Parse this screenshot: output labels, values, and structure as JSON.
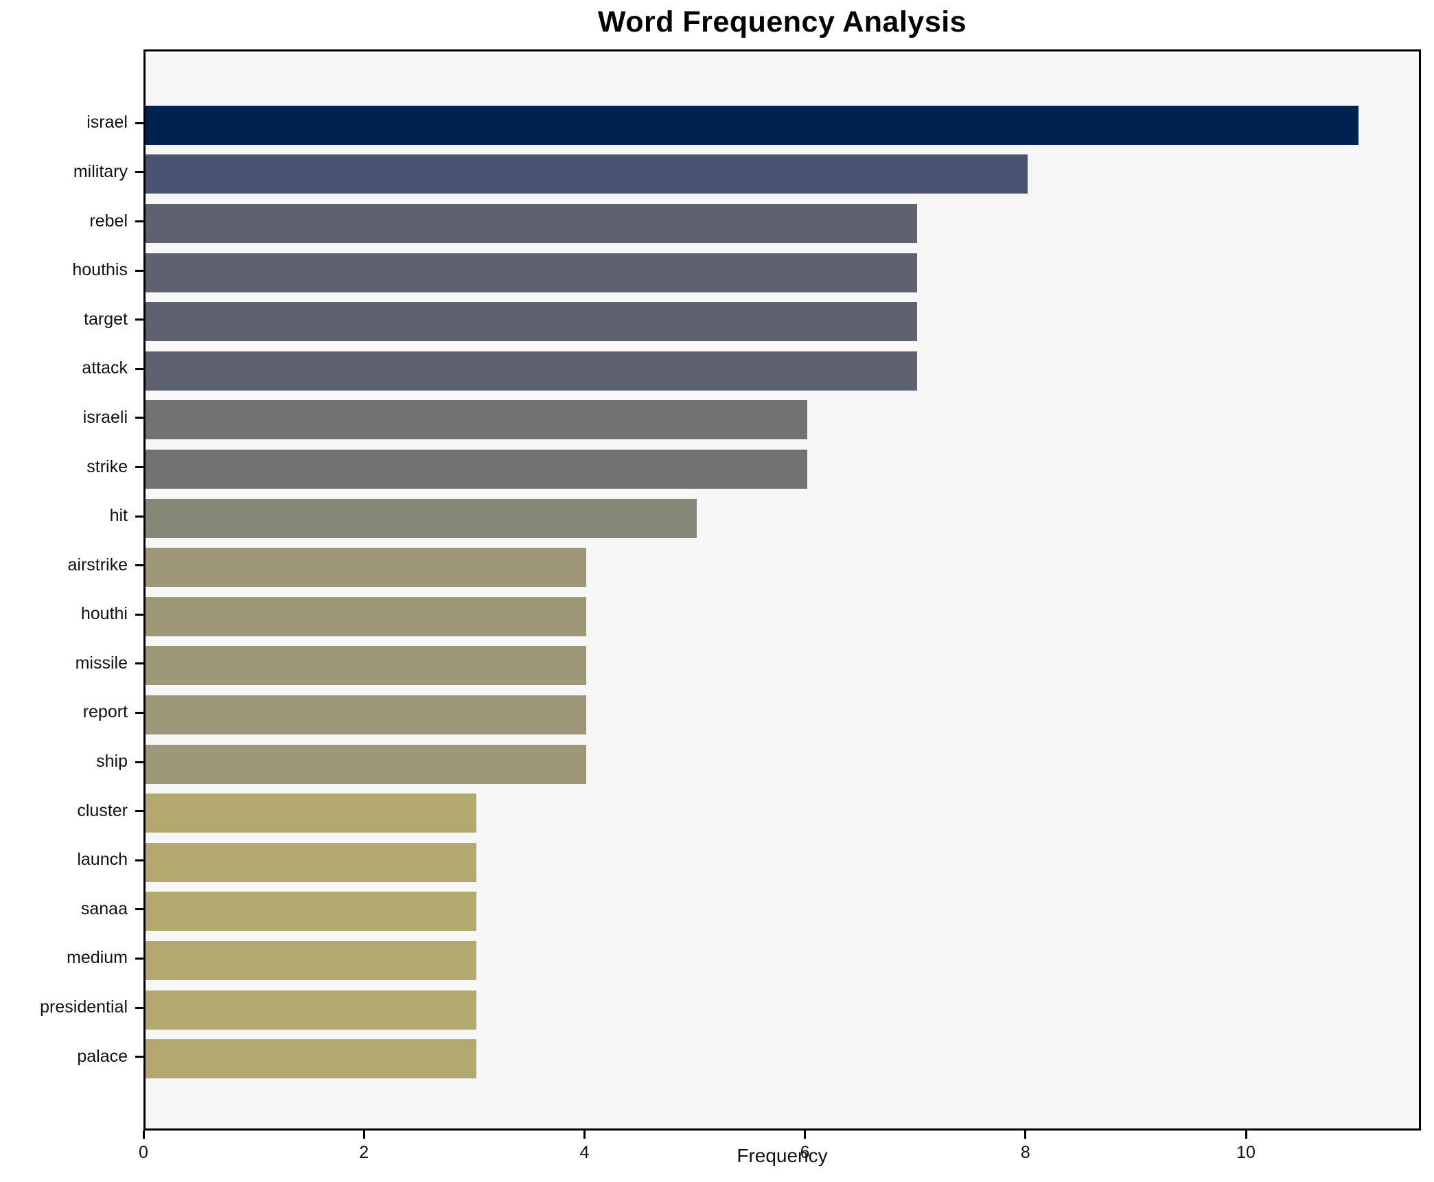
{
  "title": "Word Frequency Analysis",
  "chart_data": {
    "type": "bar",
    "orientation": "horizontal",
    "title": "Word Frequency Analysis",
    "xlabel": "Frequency",
    "ylabel": "",
    "categories": [
      "israel",
      "military",
      "rebel",
      "houthis",
      "target",
      "attack",
      "israeli",
      "strike",
      "hit",
      "airstrike",
      "houthi",
      "missile",
      "report",
      "ship",
      "cluster",
      "launch",
      "sanaa",
      "medium",
      "presidential",
      "palace"
    ],
    "values": [
      11,
      8,
      7,
      7,
      7,
      7,
      6,
      6,
      5,
      4,
      4,
      4,
      4,
      4,
      3,
      3,
      3,
      3,
      3,
      3
    ],
    "bar_colors": [
      "#00224e",
      "#4a5472",
      "#5d6170",
      "#5d6170",
      "#5d6170",
      "#5d6170",
      "#717274",
      "#717274",
      "#868877",
      "#9e9778",
      "#9e9778",
      "#9e9778",
      "#9e9778",
      "#9e9778",
      "#b3a96e",
      "#b3a96e",
      "#b3a96e",
      "#b3a96e",
      "#b3a96e",
      "#b3a96e"
    ],
    "xlim": [
      0,
      11.55
    ],
    "x_ticks": [
      0,
      2,
      4,
      6,
      8,
      10
    ],
    "grid": false,
    "legend": false,
    "plot_bg": "#f7f7f8",
    "figure_bg": "#ffffff",
    "spine_color": "#000000"
  }
}
